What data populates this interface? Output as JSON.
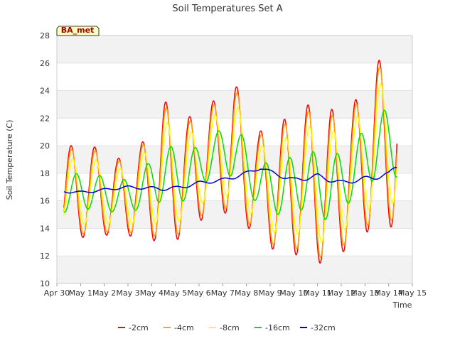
{
  "chart_data": {
    "type": "line",
    "title": "Soil Temperatures Set A",
    "xlabel": "Time",
    "ylabel": "Soil Temperature (C)",
    "ylim": [
      10,
      28
    ],
    "yticks": [
      10,
      12,
      14,
      16,
      18,
      20,
      22,
      24,
      26,
      28
    ],
    "xlim": [
      0,
      15
    ],
    "xtick_labels": [
      "Apr 30",
      "May 1",
      "May 2",
      "May 3",
      "May 4",
      "May 5",
      "May 6",
      "May 7",
      "May 8",
      "May 9",
      "May 10",
      "May 11",
      "May 12",
      "May 13",
      "May 14",
      "May 15"
    ],
    "grid": "horizontal bands",
    "legend_position": "bottom",
    "annotation": "BA_met",
    "daily": [
      {
        "max": 20.0,
        "min": 13.1
      },
      {
        "max": 20.0,
        "min": 13.5
      },
      {
        "max": 19.0,
        "min": 13.5
      },
      {
        "max": 19.9,
        "min": 13.4
      },
      {
        "max": 23.3,
        "min": 12.9
      },
      {
        "max": 22.0,
        "min": 13.4
      },
      {
        "max": 23.1,
        "min": 15.4
      },
      {
        "max": 24.6,
        "min": 14.9
      },
      {
        "max": 21.0,
        "min": 13.4
      },
      {
        "max": 21.8,
        "min": 11.9
      },
      {
        "max": 23.0,
        "min": 12.2
      },
      {
        "max": 22.6,
        "min": 11.0
      },
      {
        "max": 23.0,
        "min": 13.2
      },
      {
        "max": 26.2,
        "min": 14.1
      }
    ],
    "series": [
      {
        "name": "-2cm",
        "color": "#ff0000",
        "amp_scale": 1.0,
        "lag": 0.0,
        "mean_blend": 0.0,
        "width": 1.5
      },
      {
        "name": "-4cm",
        "color": "#ffa500",
        "amp_scale": 0.92,
        "lag": 0.02,
        "mean_blend": 0.0,
        "width": 1.5
      },
      {
        "name": "-8cm",
        "color": "#ffff00",
        "amp_scale": 0.72,
        "lag": 0.06,
        "mean_blend": 0.0,
        "width": 1.5
      },
      {
        "name": "-16cm",
        "color": "#00dd00",
        "amp_scale": 0.4,
        "lag": 0.22,
        "mean_blend": 0.0,
        "width": 1.5
      },
      {
        "name": "-32cm",
        "color": "#0000cc",
        "amp_scale": 0.03,
        "lag": 0.4,
        "mean_blend": 1.0,
        "width": 1.5
      }
    ],
    "deep_trend": [
      [
        0.3,
        16.7
      ],
      [
        1.0,
        16.6
      ],
      [
        2.0,
        16.8
      ],
      [
        3.0,
        17.0
      ],
      [
        4.0,
        16.9
      ],
      [
        5.0,
        16.9
      ],
      [
        6.0,
        17.3
      ],
      [
        7.0,
        17.5
      ],
      [
        8.0,
        18.0
      ],
      [
        8.6,
        18.4
      ],
      [
        9.0,
        18.1
      ],
      [
        10.0,
        17.5
      ],
      [
        11.0,
        17.8
      ],
      [
        12.0,
        17.3
      ],
      [
        13.0,
        17.6
      ],
      [
        14.0,
        17.9
      ],
      [
        14.3,
        18.5
      ]
    ],
    "x_start": 0.3,
    "x_end": 14.35
  }
}
